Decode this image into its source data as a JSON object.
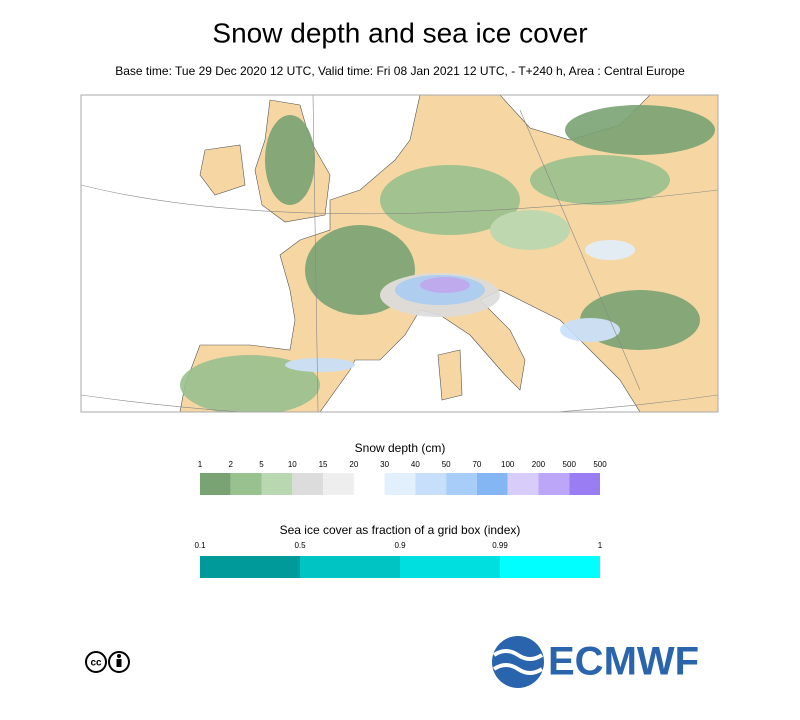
{
  "title": "Snow depth and sea ice cover",
  "subtitle": "Base time: Tue 29 Dec 2020 12 UTC, Valid time: Fri 08 Jan 2021 12 UTC, - T+240 h, Area : Central Europe",
  "snow_legend": {
    "title": "Snow depth (cm)",
    "labels": [
      1,
      2,
      5,
      10,
      15,
      20,
      30,
      40,
      50,
      70,
      100,
      200,
      500,
      500
    ],
    "colors": [
      "#7aa374",
      "#99c08f",
      "#b9d8b1",
      "#dcdcdc",
      "#eeeeee",
      "#ffffff",
      "#e2effc",
      "#c8dffb",
      "#a8cdf8",
      "#84b6f4",
      "#d8ccfa",
      "#bba6f7",
      "#9a7df2"
    ]
  },
  "ice_legend": {
    "title": "Sea ice cover as fraction of a grid box (index)",
    "labels": [
      0.1,
      0.5,
      0.9,
      0.99,
      1
    ],
    "colors": [
      "#009a9a",
      "#00c3c3",
      "#00dfdf",
      "#00ffff"
    ]
  },
  "license_icon": "cc",
  "logo": "ECMWF"
}
